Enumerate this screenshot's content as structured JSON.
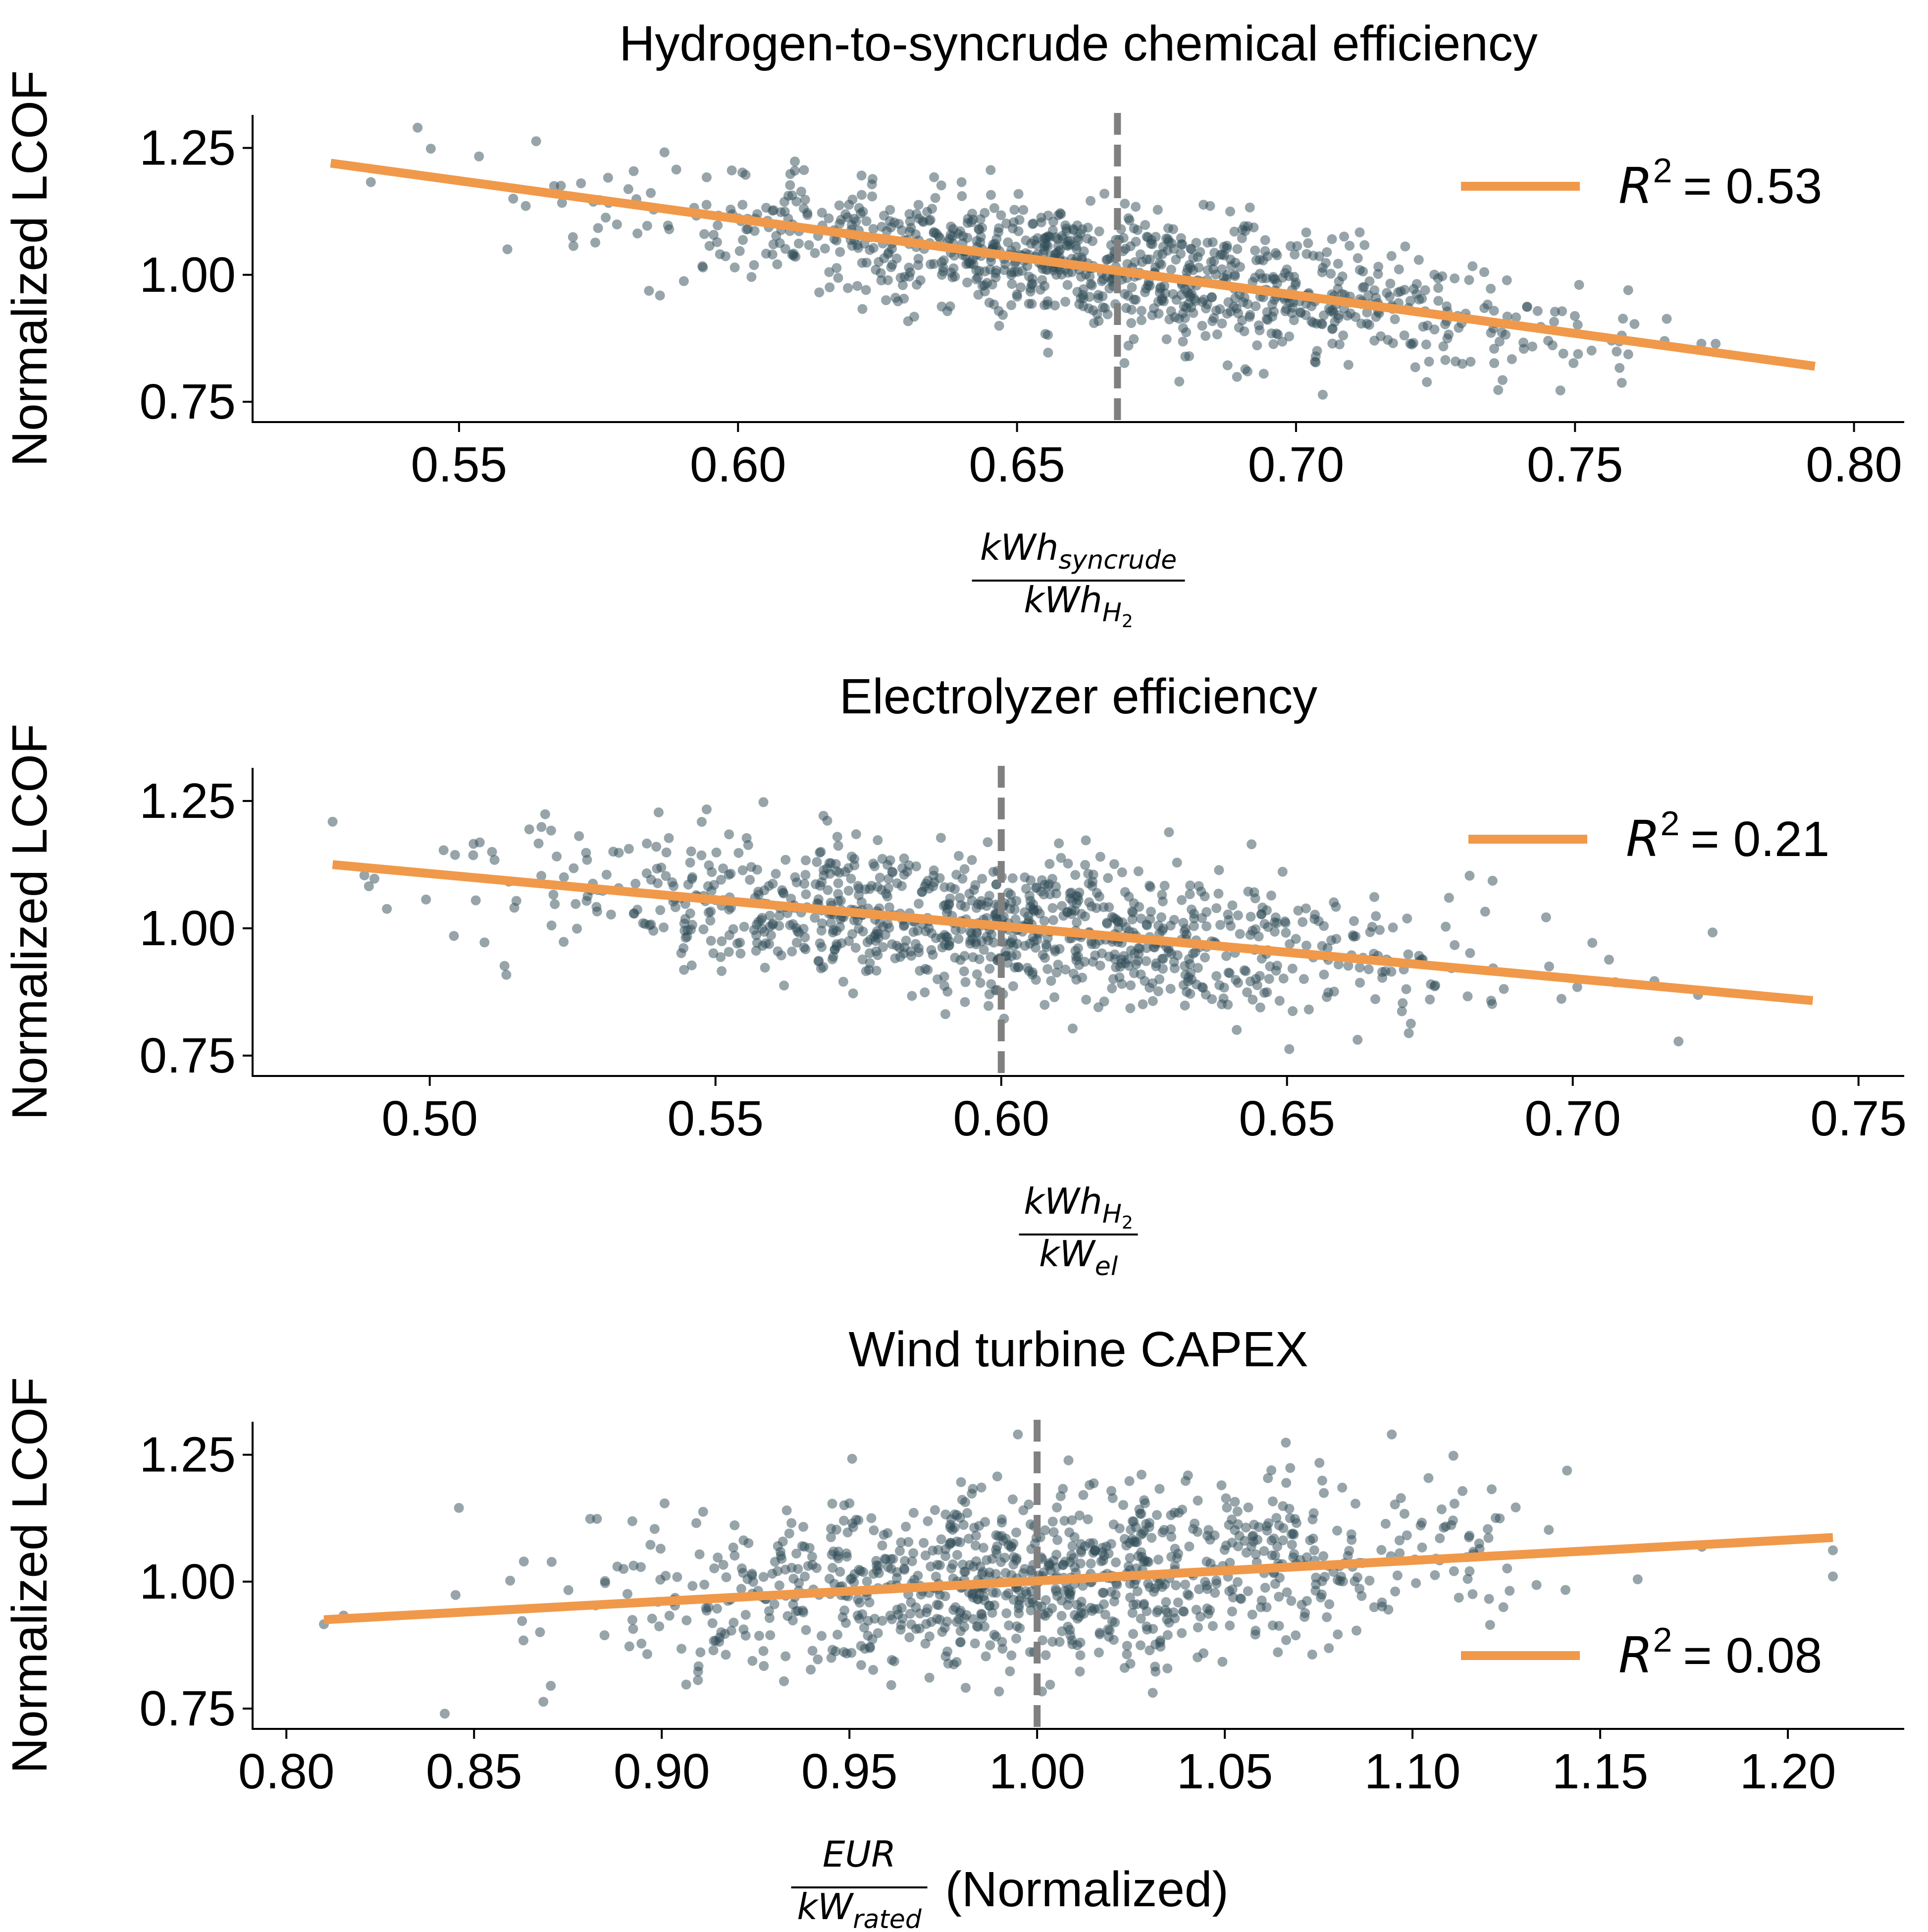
{
  "colors": {
    "points": "#2f4b55",
    "fit": "#f0994a",
    "baseline": "#808080",
    "axis": "#000000"
  },
  "chart_data": [
    {
      "type": "scatter",
      "title": "Hydrogen-to-syncrude chemical efficiency",
      "ylabel": "Normalized LCOF",
      "xlabel": {
        "num_base": "kWh",
        "num_sub": "syncrude",
        "den_base": "kWh",
        "den_sub": "H",
        "den_sub2": "2",
        "suffix": ""
      },
      "xlim": [
        0.513,
        0.809
      ],
      "ylim": [
        0.71,
        1.315
      ],
      "xticks": [
        "0.55",
        "0.60",
        "0.65",
        "0.70",
        "0.75",
        "0.80"
      ],
      "yticks": [
        "0.75",
        "1.00",
        "1.25"
      ],
      "baseline_x": 0.668,
      "n_points": 1000,
      "x_mean": 0.668,
      "x_sd": 0.042,
      "x_range": [
        0.527,
        0.795
      ],
      "fit": {
        "x": [
          0.527,
          0.793
        ],
        "y": [
          1.22,
          0.82
        ]
      },
      "r2_label": "= 0.53",
      "legend": "right"
    },
    {
      "type": "scatter",
      "title": "Electrolyzer efficiency",
      "ylabel": "Normalized LCOF",
      "xlabel": {
        "num_base": "kWh",
        "num_sub": "H",
        "num_sub2": "2",
        "den_base": "kW",
        "den_sub": "el",
        "suffix": ""
      },
      "xlim": [
        0.469,
        0.758
      ],
      "ylim": [
        0.71,
        1.315
      ],
      "xticks": [
        "0.50",
        "0.55",
        "0.60",
        "0.65",
        "0.70",
        "0.75"
      ],
      "yticks": [
        "0.75",
        "1.00",
        "1.25"
      ],
      "baseline_x": 0.6,
      "n_points": 1000,
      "x_mean": 0.6,
      "x_sd": 0.04,
      "x_range": [
        0.483,
        0.745
      ],
      "fit": {
        "x": [
          0.483,
          0.742
        ],
        "y": [
          1.125,
          0.858
        ]
      },
      "r2_label": "= 0.21",
      "legend": "right"
    },
    {
      "type": "scatter",
      "title": "Wind turbine CAPEX",
      "ylabel": "Normalized LCOF",
      "xlabel": {
        "num_base": "EUR",
        "den_base": "kW",
        "den_sub": "rated",
        "suffix": "(Normalized)"
      },
      "xlim": [
        0.791,
        1.231
      ],
      "ylim": [
        0.71,
        1.315
      ],
      "xticks": [
        "0.80",
        "0.85",
        "0.90",
        "0.95",
        "1.00",
        "1.05",
        "1.10",
        "1.15",
        "1.20"
      ],
      "yticks": [
        "0.75",
        "1.00",
        "1.25"
      ],
      "baseline_x": 1.0,
      "n_points": 1000,
      "x_mean": 1.0,
      "x_sd": 0.06,
      "x_range": [
        0.81,
        1.212
      ],
      "fit": {
        "x": [
          0.81,
          1.212
        ],
        "y": [
          0.925,
          1.087
        ]
      },
      "r2_label": "= 0.08",
      "legend": "lower right"
    }
  ]
}
